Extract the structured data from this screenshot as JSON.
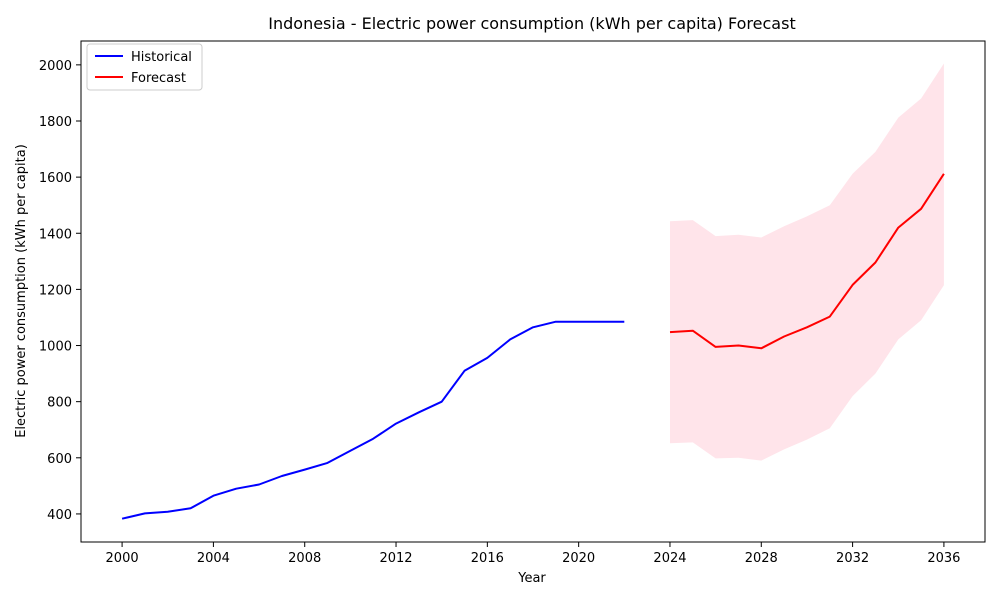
{
  "chart_data": {
    "type": "line",
    "title": "Indonesia - Electric power consumption (kWh per capita) Forecast",
    "xlabel": "Year",
    "ylabel": "Electric power consumption (kWh per capita)",
    "xlim": [
      1998.2,
      2037.8
    ],
    "ylim": [
      300,
      2085
    ],
    "xticks": [
      2000,
      2004,
      2008,
      2012,
      2016,
      2020,
      2024,
      2028,
      2032,
      2036
    ],
    "yticks": [
      400,
      600,
      800,
      1000,
      1200,
      1400,
      1600,
      1800,
      2000
    ],
    "legend": {
      "position": "top-left",
      "entries": [
        "Historical",
        "Forecast"
      ]
    },
    "grid": false,
    "series": [
      {
        "name": "Historical",
        "color": "#0000ff",
        "x": [
          2000,
          2001,
          2002,
          2003,
          2004,
          2005,
          2006,
          2007,
          2008,
          2009,
          2010,
          2011,
          2012,
          2013,
          2014,
          2015,
          2016,
          2017,
          2018,
          2019,
          2020,
          2021,
          2022
        ],
        "y": [
          383,
          402,
          408,
          420,
          465,
          490,
          505,
          535,
          558,
          582,
          625,
          668,
          722,
          762,
          800,
          910,
          956,
          1022,
          1065,
          1085,
          1085,
          1085,
          1085
        ]
      },
      {
        "name": "Forecast",
        "color": "#ff0000",
        "x": [
          2024,
          2025,
          2026,
          2027,
          2028,
          2029,
          2030,
          2031,
          2032,
          2033,
          2034,
          2035,
          2036
        ],
        "y": [
          1048,
          1053,
          995,
          1000,
          990,
          1032,
          1065,
          1103,
          1216,
          1296,
          1420,
          1487,
          1612
        ]
      }
    ],
    "confidence_band": {
      "color": "#ffe4ea",
      "x": [
        2024,
        2025,
        2026,
        2027,
        2028,
        2029,
        2030,
        2031,
        2032,
        2033,
        2034,
        2035,
        2036
      ],
      "lower": [
        652,
        655,
        598,
        600,
        590,
        630,
        665,
        705,
        820,
        900,
        1022,
        1090,
        1215
      ],
      "upper": [
        1443,
        1447,
        1390,
        1395,
        1385,
        1425,
        1460,
        1500,
        1612,
        1690,
        1812,
        1880,
        2005
      ]
    }
  }
}
